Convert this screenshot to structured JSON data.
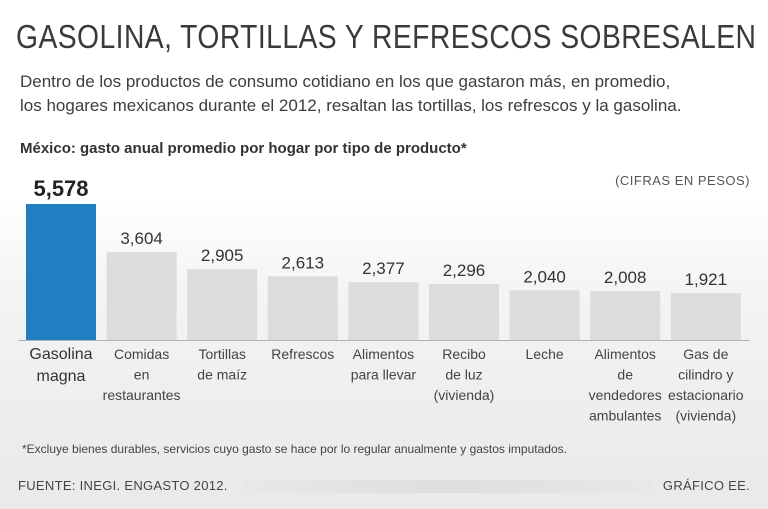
{
  "header": {
    "title": "GASOLINA, TORTILLAS Y REFRESCOS SOBRESALEN",
    "subtitle_line1": "Dentro de los productos de consumo cotidiano en los que gastaron más, en promedio,",
    "subtitle_line2": "los hogares mexicanos durante el 2012, resaltan las tortillas, los refrescos y la gasolina."
  },
  "footer": {
    "footnote": "*Excluye bienes durables, servicios cuyo gasto se hace por lo regular anualmente y gastos imputados.",
    "source": "FUENTE: INEGI. ENGASTO 2012.",
    "credit": "GRÁFICO EE."
  },
  "colors": {
    "highlight": "#1f7fc0",
    "bar": "#dcdcdc"
  },
  "chart_data": {
    "type": "bar",
    "title": "México: gasto anual promedio por hogar por tipo de producto*",
    "units": "(CIFRAS EN PESOS)",
    "xlabel": "",
    "ylabel": "",
    "ylim": [
      0,
      5578
    ],
    "highlight_index": 0,
    "categories": [
      [
        "Gasolina",
        "magna"
      ],
      [
        "Comidas",
        "en",
        "restaurantes"
      ],
      [
        "Tortillas",
        "de maíz"
      ],
      [
        "Refrescos"
      ],
      [
        "Alimentos",
        "para llevar"
      ],
      [
        "Recibo",
        "de luz",
        "(vivienda)"
      ],
      [
        "Leche"
      ],
      [
        "Alimentos",
        "de",
        "vendedores",
        "ambulantes"
      ],
      [
        "Gas de",
        "cilindro y",
        "estacionario",
        "(vivienda)"
      ]
    ],
    "values": [
      5578,
      3604,
      2905,
      2613,
      2377,
      2296,
      2040,
      2008,
      1921
    ],
    "value_labels": [
      "5,578",
      "3,604",
      "2,905",
      "2,613",
      "2,377",
      "2,296",
      "2,040",
      "2,008",
      "1,921"
    ]
  }
}
